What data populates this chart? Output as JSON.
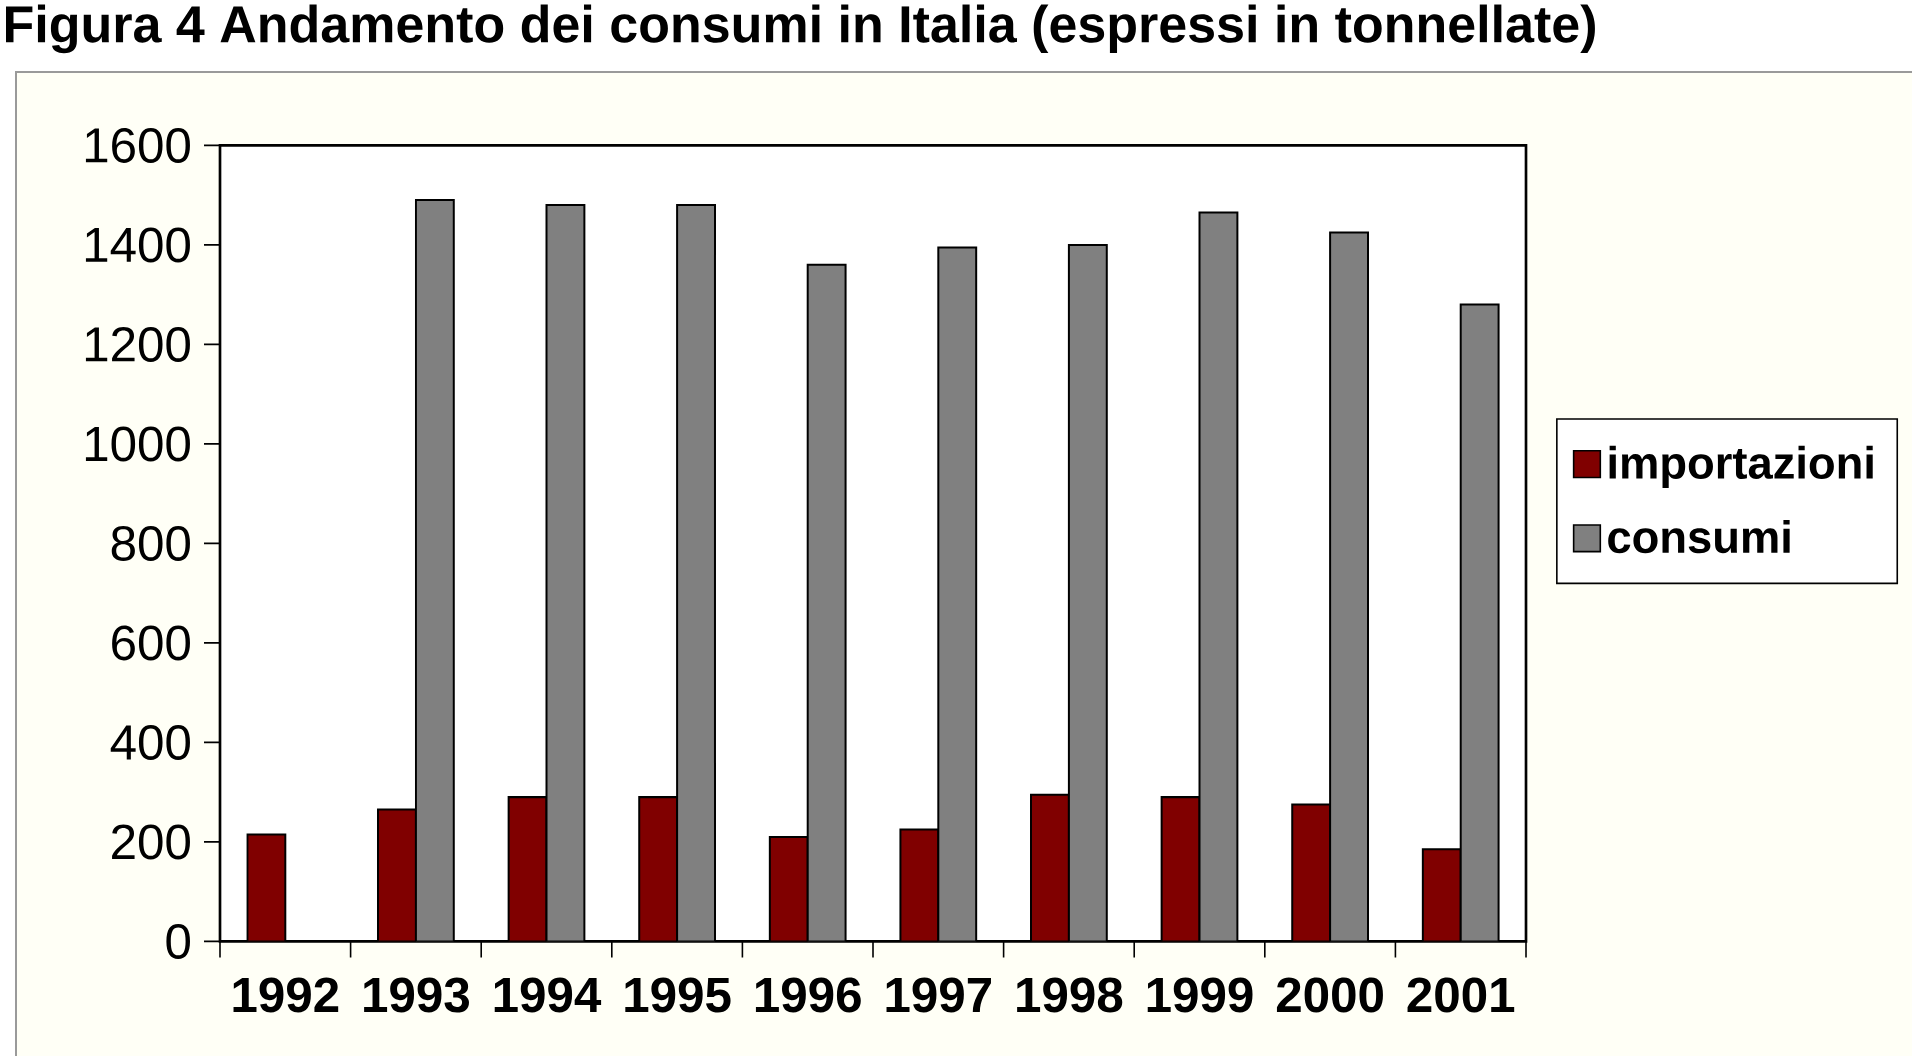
{
  "chart_data": {
    "type": "bar",
    "title": "Figura 4 Andamento dei consumi in Italia (espressi in tonnellate)",
    "categories": [
      "1992",
      "1993",
      "1994",
      "1995",
      "1996",
      "1997",
      "1998",
      "1999",
      "2000",
      "2001"
    ],
    "series": [
      {
        "name": "importazioni",
        "color": "#800000",
        "values": [
          215,
          265,
          290,
          290,
          210,
          225,
          295,
          290,
          275,
          185
        ]
      },
      {
        "name": "consumi",
        "color": "#808080",
        "values": [
          null,
          1490,
          1480,
          1480,
          1360,
          1395,
          1400,
          1465,
          1425,
          1280
        ]
      }
    ],
    "ylim": [
      0,
      1600
    ],
    "yticks": [
      0,
      200,
      400,
      600,
      800,
      1000,
      1200,
      1400,
      1600
    ],
    "legend": "right"
  }
}
